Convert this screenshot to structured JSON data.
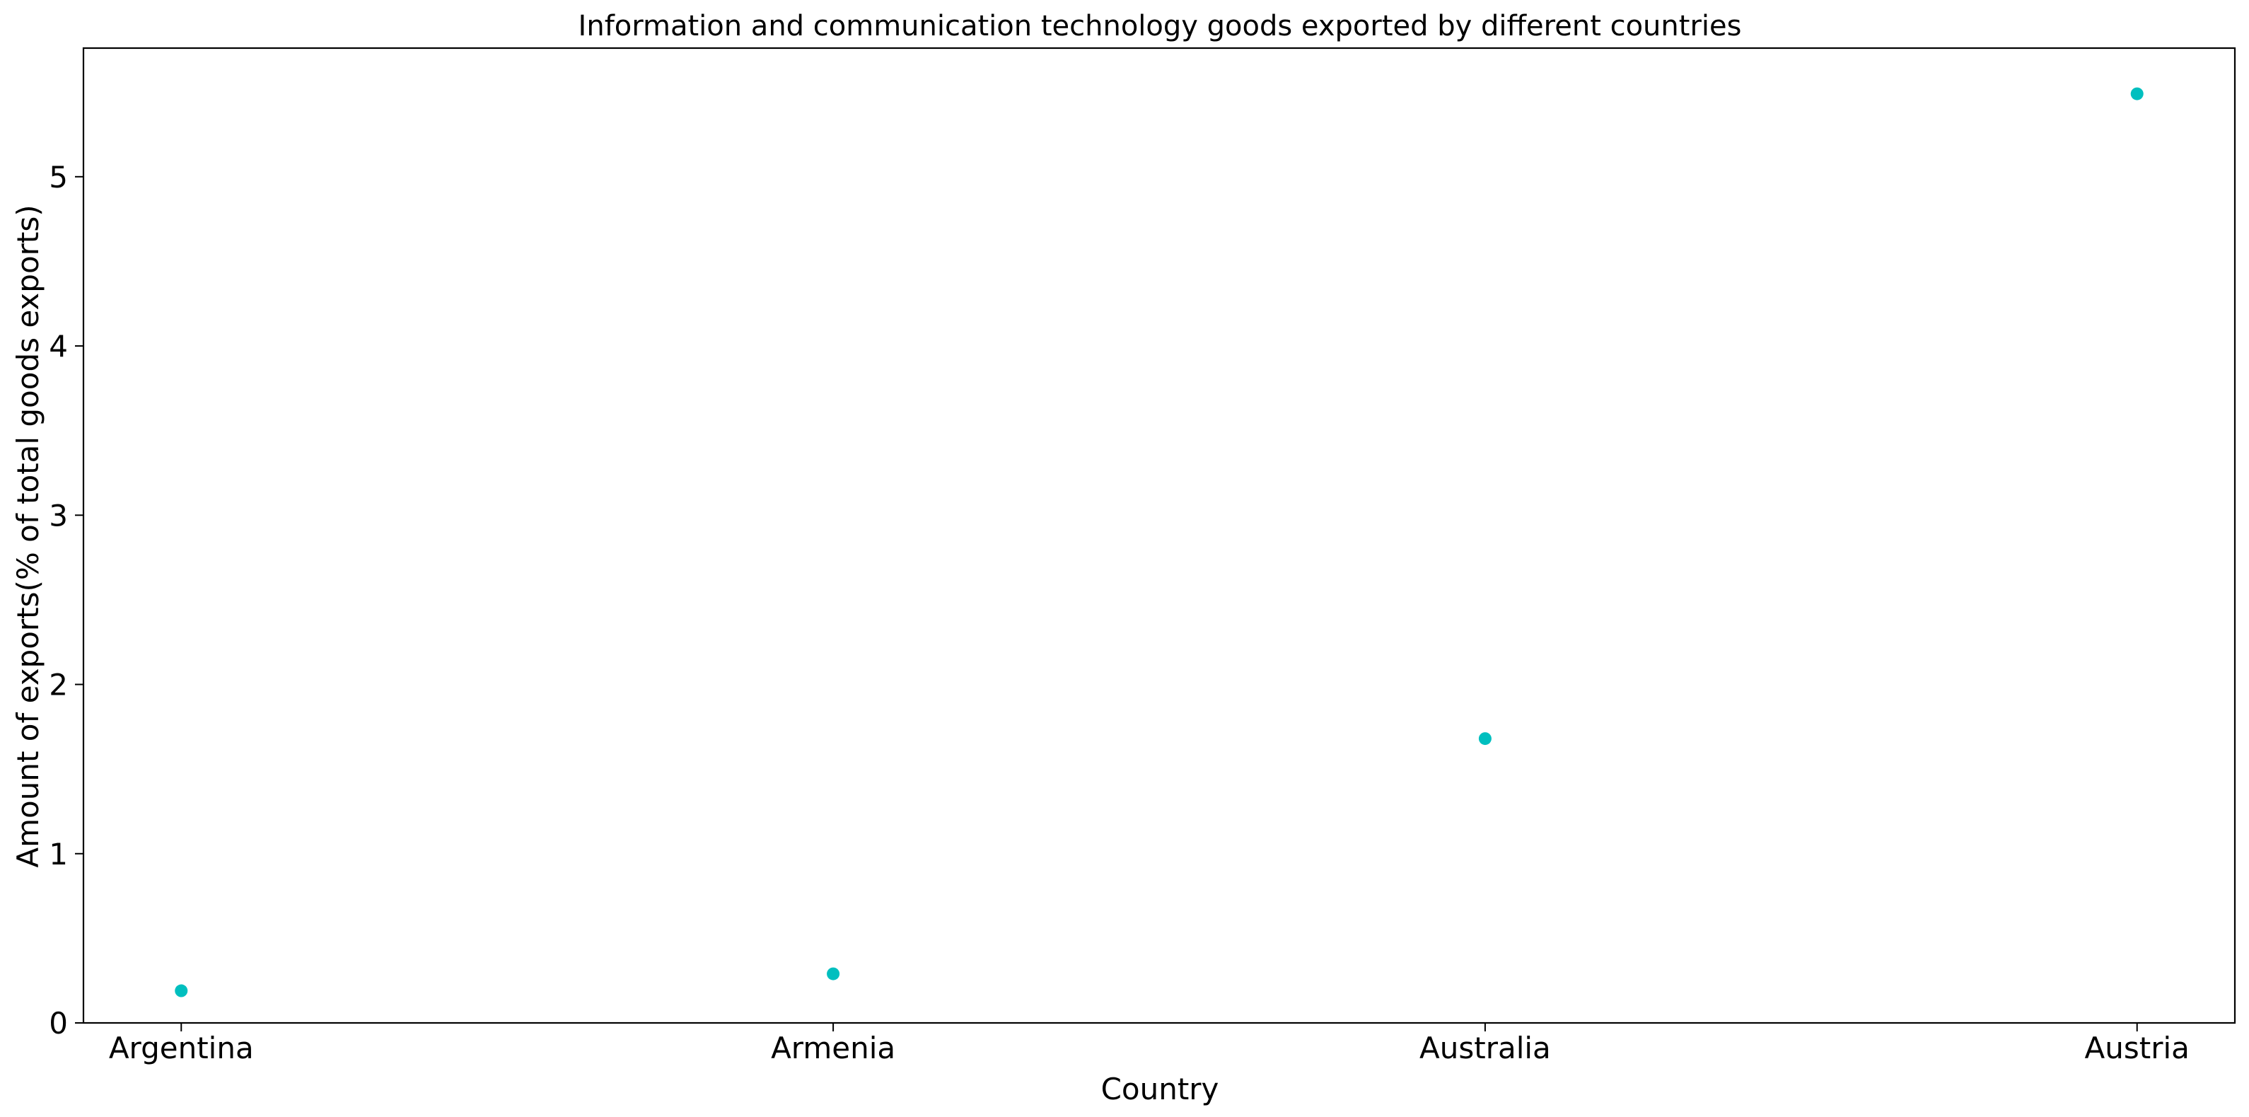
{
  "chart_data": {
    "type": "scatter",
    "title": "Information and communication technology goods exported by different countries",
    "xlabel": "Country",
    "ylabel": "Amount of exports(% of total goods exports)",
    "categories": [
      "Argentina",
      "Armenia",
      "Australia",
      "Austria"
    ],
    "series": [
      {
        "values": [
          0.19,
          0.29,
          1.68,
          5.49
        ]
      }
    ],
    "ylim": [
      0,
      5.76
    ],
    "yticks": [
      0,
      1,
      2,
      3,
      4,
      5
    ],
    "grid": false,
    "legend": "none",
    "marker_color": "#00bfbf"
  }
}
